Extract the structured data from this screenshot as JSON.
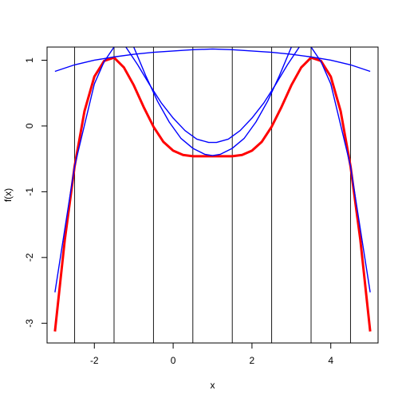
{
  "chart_data": {
    "type": "line",
    "title": "",
    "xlabel": "x",
    "ylabel": "f(x)",
    "xlim": [
      -3.2,
      5.2
    ],
    "ylim": [
      -3.3,
      1.2
    ],
    "x_ticks": [
      -2,
      0,
      2,
      4
    ],
    "y_ticks": [
      -3,
      -2,
      -1,
      0,
      1
    ],
    "x_tick_labels": [
      "-2",
      "0",
      "2",
      "4"
    ],
    "y_tick_labels": [
      "-3",
      "-2",
      "-1",
      "0",
      "1"
    ],
    "grid": false,
    "legend": "none",
    "vertical_lines": [
      -2.5,
      -1.5,
      -0.5,
      0.5,
      1.5,
      2.5,
      3.5,
      4.5
    ],
    "series": [
      {
        "color": "#ff0000",
        "x": [
          -3.0,
          -2.75,
          -2.5,
          -2.25,
          -2.0,
          -1.75,
          -1.5,
          -1.25,
          -1.0,
          -0.75,
          -0.5,
          -0.25,
          0.0,
          0.25,
          0.5,
          0.75,
          1.0,
          1.25,
          1.5,
          1.75,
          2.0,
          2.25,
          2.5,
          2.75,
          3.0,
          3.25,
          3.5,
          3.75,
          4.0,
          4.25,
          4.5,
          4.75,
          5.0
        ],
        "y": [
          -3.125,
          -1.732,
          -0.61,
          0.226,
          0.75,
          0.99,
          1.04,
          0.89,
          0.62,
          0.29,
          -0.01,
          -0.24,
          -0.375,
          -0.44,
          -0.46,
          -0.46,
          -0.46,
          -0.46,
          -0.46,
          -0.44,
          -0.375,
          -0.24,
          -0.01,
          0.29,
          0.62,
          0.89,
          1.04,
          0.99,
          0.75,
          0.226,
          -0.61,
          -1.732,
          -3.125
        ]
      },
      {
        "color": "#0000ff",
        "x": [
          -3.0,
          -2.5,
          -2.0,
          -1.5,
          -1.0,
          -0.5,
          0.0,
          0.5,
          1.0,
          1.5,
          2.0,
          2.5,
          3.0,
          3.5,
          4.0,
          4.5,
          5.0
        ],
        "y": [
          0.83,
          0.93,
          1.0,
          1.05,
          1.09,
          1.12,
          1.14,
          1.16,
          1.17,
          1.16,
          1.14,
          1.12,
          1.09,
          1.05,
          1.0,
          0.93,
          0.83
        ]
      },
      {
        "color": "#0000ff",
        "x": [
          -3.0,
          -2.5,
          -2.0,
          -1.75,
          -1.5
        ],
        "y": [
          -2.53,
          -0.61,
          0.64,
          0.98,
          1.2
        ]
      },
      {
        "color": "#0000ff",
        "x": [
          5.0,
          4.5,
          4.0,
          3.75,
          3.5
        ],
        "y": [
          -2.53,
          -0.61,
          0.64,
          0.98,
          1.2
        ]
      },
      {
        "color": "#0000ff",
        "x": [
          -1.2,
          -0.9,
          -0.6,
          -0.3,
          0.0,
          0.3,
          0.6,
          0.9,
          1.0,
          1.1,
          1.4,
          1.7,
          2.0,
          2.3,
          2.6,
          2.9,
          3.2
        ],
        "y": [
          1.2,
          0.93,
          0.63,
          0.35,
          0.12,
          -0.07,
          -0.2,
          -0.25,
          -0.25,
          -0.25,
          -0.2,
          -0.07,
          0.12,
          0.35,
          0.63,
          0.93,
          1.2
        ]
      },
      {
        "color": "#0000ff",
        "x": [
          -1.0,
          -0.7,
          -0.4,
          -0.1,
          0.2,
          0.5,
          0.8,
          1.0,
          1.2,
          1.5,
          1.8,
          2.1,
          2.4,
          2.7,
          3.0
        ],
        "y": [
          1.2,
          0.77,
          0.38,
          0.06,
          -0.19,
          -0.34,
          -0.43,
          -0.45,
          -0.43,
          -0.34,
          -0.19,
          0.06,
          0.38,
          0.77,
          1.2
        ]
      }
    ]
  }
}
